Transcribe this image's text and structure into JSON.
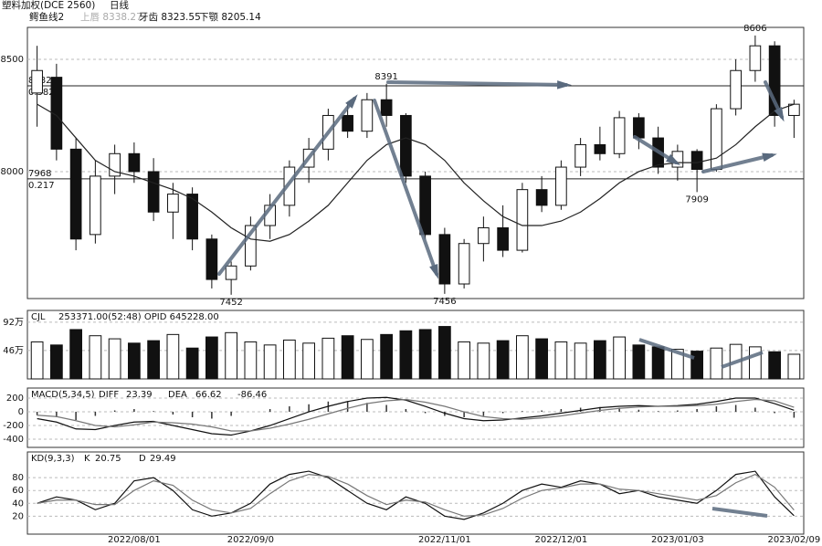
{
  "header": {
    "title": "塑料加权(DCE 2560)",
    "period": "日线",
    "indicator": "鳄鱼线2",
    "items": [
      "上唇 8338.27",
      "牙齿 8323.55",
      "下颚 8205.14"
    ]
  },
  "chart_data": [
    {
      "type": "candlestick",
      "ylim": [
        7435,
        8642
      ],
      "yticks": [
        8000,
        8500
      ],
      "grid": true,
      "up_color": "#ffffff",
      "down_color": "#111111",
      "levels": [
        {
          "value": 8382,
          "label": "8382"
        },
        {
          "value": 7968,
          "label": "7968"
        }
      ],
      "level_ratios": [
        "0.382",
        "0.217"
      ],
      "categories": [
        null,
        null,
        null,
        null,
        null,
        "2022/08/01",
        null,
        null,
        null,
        null,
        null,
        "2022/09/0",
        null,
        null,
        null,
        null,
        null,
        null,
        null,
        null,
        null,
        "2022/11/01",
        null,
        null,
        null,
        null,
        null,
        "2022/12/01",
        null,
        null,
        null,
        null,
        null,
        "2023/01/03",
        null,
        null,
        null,
        null,
        null,
        "2023/02/09"
      ],
      "candles": [
        [
          8350,
          8560,
          8200,
          8450
        ],
        [
          8420,
          8480,
          8050,
          8100
        ],
        [
          8100,
          8150,
          7650,
          7700
        ],
        [
          7720,
          8050,
          7680,
          7980
        ],
        [
          7980,
          8120,
          7900,
          8080
        ],
        [
          8080,
          8130,
          7950,
          8000
        ],
        [
          8000,
          8060,
          7780,
          7820
        ],
        [
          7820,
          7950,
          7700,
          7900
        ],
        [
          7900,
          7930,
          7650,
          7700
        ],
        [
          7700,
          7720,
          7480,
          7520
        ],
        [
          7520,
          7600,
          7452,
          7580
        ],
        [
          7580,
          7800,
          7560,
          7760
        ],
        [
          7760,
          7900,
          7700,
          7850
        ],
        [
          7850,
          8050,
          7800,
          8020
        ],
        [
          8020,
          8150,
          7950,
          8100
        ],
        [
          8100,
          8280,
          8050,
          8250
        ],
        [
          8250,
          8300,
          8150,
          8180
        ],
        [
          8180,
          8350,
          8150,
          8320
        ],
        [
          8320,
          8391,
          8200,
          8250
        ],
        [
          8250,
          8260,
          7950,
          7980
        ],
        [
          7980,
          8000,
          7700,
          7720
        ],
        [
          7720,
          7750,
          7456,
          7500
        ],
        [
          7500,
          7700,
          7480,
          7680
        ],
        [
          7680,
          7800,
          7600,
          7750
        ],
        [
          7750,
          7850,
          7620,
          7650
        ],
        [
          7650,
          7950,
          7640,
          7920
        ],
        [
          7920,
          7980,
          7820,
          7850
        ],
        [
          7850,
          8050,
          7830,
          8020
        ],
        [
          8020,
          8150,
          7980,
          8120
        ],
        [
          8120,
          8200,
          8050,
          8080
        ],
        [
          8080,
          8270,
          8060,
          8240
        ],
        [
          8240,
          8260,
          8100,
          8150
        ],
        [
          8150,
          8200,
          7990,
          8020
        ],
        [
          8020,
          8120,
          7960,
          8090
        ],
        [
          8090,
          8100,
          7909,
          8010
        ],
        [
          8010,
          8300,
          8000,
          8280
        ],
        [
          8280,
          8500,
          8250,
          8450
        ],
        [
          8450,
          8606,
          8400,
          8560
        ],
        [
          8560,
          8580,
          8200,
          8250
        ],
        [
          8250,
          8320,
          8150,
          8300
        ]
      ],
      "series": [
        {
          "name": "MA",
          "color": "#222222",
          "values": [
            8300,
            8250,
            8150,
            8050,
            8000,
            7980,
            7950,
            7920,
            7880,
            7820,
            7750,
            7700,
            7690,
            7720,
            7780,
            7850,
            7950,
            8050,
            8120,
            8150,
            8120,
            8050,
            7950,
            7870,
            7800,
            7760,
            7760,
            7780,
            7820,
            7880,
            7950,
            8000,
            8030,
            8040,
            8040,
            8060,
            8120,
            8200,
            8270,
            8300
          ]
        }
      ]
    },
    {
      "type": "bar",
      "label": "CJL",
      "text": "253371.00(52:48)  OPID 645228.00",
      "ylim": [
        0,
        111
      ],
      "yticks": [
        {
          "value": 46,
          "label": "46万"
        },
        {
          "value": 92,
          "label": "92万"
        }
      ],
      "grid": true,
      "values": [
        60,
        55,
        80,
        70,
        65,
        58,
        62,
        72,
        50,
        68,
        75,
        60,
        55,
        63,
        58,
        66,
        70,
        64,
        72,
        78,
        80,
        85,
        60,
        58,
        62,
        70,
        65,
        60,
        58,
        62,
        68,
        55,
        52,
        48,
        45,
        50,
        56,
        52,
        44,
        40
      ]
    },
    {
      "type": "macd",
      "label": "MACD(5,34,5)",
      "ylim": [
        -520,
        347
      ],
      "yticks": [
        200,
        0,
        -200,
        -400
      ],
      "grid": true,
      "series": [
        {
          "name": "DIFF",
          "color": "#111111",
          "values": [
            -100,
            -150,
            -250,
            -260,
            -200,
            -150,
            -140,
            -200,
            -260,
            -320,
            -340,
            -280,
            -200,
            -100,
            0,
            80,
            150,
            200,
            210,
            170,
            80,
            -20,
            -100,
            -130,
            -120,
            -90,
            -60,
            -20,
            20,
            60,
            80,
            90,
            80,
            90,
            110,
            150,
            200,
            200,
            120,
            23.39
          ]
        },
        {
          "name": "DEA",
          "color": "#777777",
          "values": [
            -50,
            -70,
            -130,
            -200,
            -220,
            -190,
            -150,
            -160,
            -180,
            -220,
            -280,
            -280,
            -240,
            -180,
            -110,
            -30,
            50,
            120,
            160,
            180,
            140,
            80,
            0,
            -70,
            -100,
            -110,
            -90,
            -60,
            -20,
            20,
            50,
            70,
            80,
            80,
            90,
            110,
            150,
            180,
            160,
            66.62
          ]
        }
      ],
      "histogram": [
        -50,
        -80,
        -120,
        -60,
        20,
        40,
        10,
        -40,
        -80,
        -100,
        -60,
        0,
        40,
        80,
        110,
        150,
        150,
        130,
        100,
        40,
        -20,
        -60,
        -80,
        -60,
        -20,
        10,
        20,
        40,
        60,
        70,
        60,
        30,
        10,
        20,
        40,
        80,
        100,
        60,
        -20,
        -86.46
      ]
    },
    {
      "type": "line",
      "label": "KD(9,3,3)",
      "ylim": [
        -8,
        120
      ],
      "yticks": [
        20,
        40,
        60,
        80
      ],
      "grid": true,
      "series": [
        {
          "name": "K",
          "color": "#111111",
          "values": [
            40,
            50,
            45,
            30,
            40,
            75,
            80,
            60,
            30,
            20,
            25,
            40,
            70,
            85,
            90,
            80,
            60,
            40,
            30,
            50,
            40,
            20,
            15,
            25,
            40,
            60,
            70,
            65,
            75,
            70,
            55,
            60,
            50,
            45,
            40,
            60,
            85,
            90,
            50,
            20.75
          ]
        },
        {
          "name": "D",
          "color": "#777777",
          "values": [
            40,
            45,
            45,
            38,
            38,
            60,
            75,
            68,
            45,
            30,
            25,
            32,
            55,
            75,
            85,
            82,
            70,
            52,
            38,
            45,
            42,
            30,
            20,
            22,
            32,
            48,
            60,
            64,
            70,
            70,
            62,
            60,
            55,
            50,
            45,
            52,
            72,
            85,
            65,
            29.49
          ]
        }
      ]
    }
  ]
}
